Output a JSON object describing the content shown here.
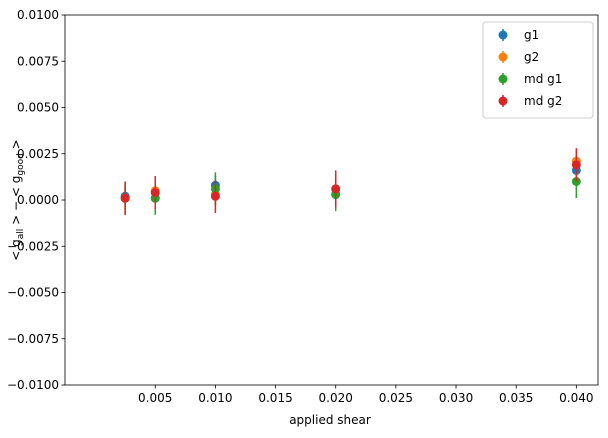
{
  "chart_data": {
    "type": "errorbar",
    "xlabel": "applied shear",
    "ylabel_parts": [
      "< g",
      "all",
      " > − < g",
      "good",
      " >"
    ],
    "x": [
      0.0025,
      0.005,
      0.01,
      0.02,
      0.04
    ],
    "series": [
      {
        "name": "g1",
        "color": "#1f77b4",
        "values": [
          0.0002,
          0.0001,
          0.0008,
          0.0003,
          0.0016
        ],
        "errors": [
          0.0005,
          0.0005,
          0.0005,
          0.0005,
          0.0005
        ]
      },
      {
        "name": "g2",
        "color": "#ff7f0e",
        "values": [
          0.0001,
          0.0005,
          0.0003,
          0.0006,
          0.0021
        ],
        "errors": [
          0.0006,
          0.0006,
          0.0006,
          0.0006,
          0.0006
        ]
      },
      {
        "name": "md g1",
        "color": "#2ca02c",
        "values": [
          0.0001,
          0.0001,
          0.0006,
          0.0003,
          0.001
        ],
        "errors": [
          0.0009,
          0.0009,
          0.0009,
          0.0009,
          0.0009
        ]
      },
      {
        "name": "md g2",
        "color": "#d62728",
        "values": [
          0.0001,
          0.0004,
          0.0002,
          0.0006,
          0.0019
        ],
        "errors": [
          0.0009,
          0.0009,
          0.0009,
          0.001,
          0.0009
        ]
      }
    ],
    "xlim": [
      -0.0025,
      0.0418
    ],
    "ylim": [
      -0.01,
      0.01
    ],
    "xticks": [
      0.005,
      {
        "value": 0.01,
        "label": "0.010"
      },
      0.015,
      {
        "value": 0.02,
        "label": "0.020"
      },
      0.025,
      {
        "value": 0.03,
        "label": "0.030"
      },
      0.035,
      {
        "value": 0.04,
        "label": "0.040"
      }
    ],
    "yticks": [
      {
        "value": -0.01,
        "label": "−0.0100"
      },
      {
        "value": -0.0075,
        "label": "−0.0075"
      },
      {
        "value": -0.005,
        "label": "−0.0050"
      },
      {
        "value": -0.0025,
        "label": "−0.0025"
      },
      {
        "value": 0,
        "label": "0.0000"
      },
      {
        "value": 0.0025,
        "label": "0.0025"
      },
      {
        "value": 0.005,
        "label": "0.0050"
      },
      {
        "value": 0.0075,
        "label": "0.0075"
      },
      {
        "value": 0.01,
        "label": "0.0100"
      }
    ],
    "legend": "upper right",
    "grid": false
  }
}
